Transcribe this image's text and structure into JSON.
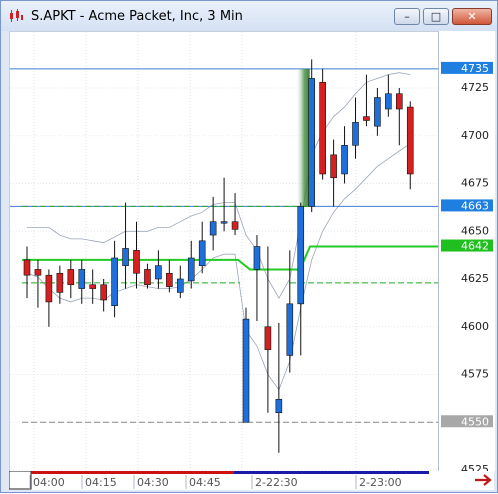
{
  "window": {
    "title": "S.APKT - Acme Packet, Inc, 3 Min",
    "minimize_glyph": "–",
    "maximize_glyph": "□",
    "close_glyph": "✕"
  },
  "chart_data": {
    "type": "candlestick",
    "symbol": "S.APKT",
    "ylim": [
      4520,
      4745
    ],
    "y_ticks": [
      4525,
      4550,
      4575,
      4600,
      4625,
      4650,
      4675,
      4700,
      4725
    ],
    "x_ticks": [
      "04:00",
      "04:15",
      "04:30",
      "04:45",
      "2-22:30",
      "2-23:00"
    ],
    "price_tags": [
      {
        "value": 4735,
        "label": "4735",
        "color": "#1e7fe0",
        "text_color": "#ffffff"
      },
      {
        "value": 4663,
        "label": "4663",
        "color": "#1e7fe0",
        "text_color": "#ffffff"
      },
      {
        "value": 4642,
        "label": "4642",
        "color": "#1fbf1f",
        "text_color": "#ffffff"
      },
      {
        "value": 4550,
        "label": "4550",
        "color": "#a8a8a8",
        "text_color": "#ffffff"
      }
    ],
    "levels": [
      {
        "value": 4735,
        "style": "solid",
        "color": "#3b7ddb"
      },
      {
        "value": 4663,
        "style": "solid",
        "color": "#3b7ddb"
      },
      {
        "value": 4663,
        "style": "dashed",
        "color": "#22aa22"
      },
      {
        "value": 4623,
        "style": "dashed",
        "color": "#22aa22"
      },
      {
        "value": 4550,
        "style": "dashed",
        "color": "#888888"
      }
    ],
    "moving_average": {
      "value_left": 4635,
      "value_right": 4642,
      "break_value": 4630,
      "color": "#22cc22"
    },
    "candles": [
      {
        "o": 4635,
        "c": 4627,
        "h": 4642,
        "l": 4615
      },
      {
        "o": 4630,
        "c": 4627,
        "h": 4635,
        "l": 4610
      },
      {
        "o": 4627,
        "c": 4613,
        "h": 4630,
        "l": 4600
      },
      {
        "o": 4628,
        "c": 4618,
        "h": 4632,
        "l": 4612
      },
      {
        "o": 4630,
        "c": 4622,
        "h": 4635,
        "l": 4615
      },
      {
        "o": 4620,
        "c": 4630,
        "h": 4635,
        "l": 4612
      },
      {
        "o": 4622,
        "c": 4620,
        "h": 4630,
        "l": 4612
      },
      {
        "o": 4622,
        "c": 4614,
        "h": 4625,
        "l": 4608
      },
      {
        "o": 4611,
        "c": 4636,
        "h": 4645,
        "l": 4605
      },
      {
        "o": 4632,
        "c": 4641,
        "h": 4665,
        "l": 4620
      },
      {
        "o": 4640,
        "c": 4628,
        "h": 4655,
        "l": 4620
      },
      {
        "o": 4630,
        "c": 4622,
        "h": 4633,
        "l": 4620
      },
      {
        "o": 4625,
        "c": 4632,
        "h": 4640,
        "l": 4620
      },
      {
        "o": 4628,
        "c": 4621,
        "h": 4635,
        "l": 4618
      },
      {
        "o": 4618,
        "c": 4625,
        "h": 4632,
        "l": 4615
      },
      {
        "o": 4624,
        "c": 4636,
        "h": 4645,
        "l": 4620
      },
      {
        "o": 4632,
        "c": 4645,
        "h": 4655,
        "l": 4628
      },
      {
        "o": 4648,
        "c": 4655,
        "h": 4668,
        "l": 4640
      },
      {
        "o": 4655,
        "c": 4655,
        "h": 4678,
        "l": 4650
      },
      {
        "o": 4655,
        "c": 4651,
        "h": 4670,
        "l": 4648
      },
      {
        "o": 4550,
        "c": 4604,
        "h": 4610,
        "l": 4550
      },
      {
        "o": 4630,
        "c": 4642,
        "h": 4648,
        "l": 4603
      },
      {
        "o": 4600,
        "c": 4588,
        "h": 4642,
        "l": 4555
      },
      {
        "o": 4555,
        "c": 4562,
        "h": 4602,
        "l": 4534
      },
      {
        "o": 4585,
        "c": 4612,
        "h": 4640,
        "l": 4576
      },
      {
        "o": 4612,
        "c": 4663,
        "h": 4665,
        "l": 4585
      },
      {
        "o": 4663,
        "c": 4730,
        "h": 4740,
        "l": 4660
      },
      {
        "o": 4728,
        "c": 4680,
        "h": 4735,
        "l": 4677
      },
      {
        "o": 4690,
        "c": 4678,
        "h": 4698,
        "l": 4663
      },
      {
        "o": 4680,
        "c": 4695,
        "h": 4705,
        "l": 4675
      },
      {
        "o": 4695,
        "c": 4707,
        "h": 4720,
        "l": 4688
      },
      {
        "o": 4710,
        "c": 4708,
        "h": 4732,
        "l": 4705
      },
      {
        "o": 4705,
        "c": 4720,
        "h": 4725,
        "l": 4700
      },
      {
        "o": 4714,
        "c": 4722,
        "h": 4732,
        "l": 4710
      },
      {
        "o": 4722,
        "c": 4714,
        "h": 4725,
        "l": 4695
      },
      {
        "o": 4715,
        "c": 4680,
        "h": 4718,
        "l": 4672
      }
    ],
    "envelope_upper": [
      4652,
      4652,
      4652,
      4648,
      4646,
      4646,
      4645,
      4644,
      4647,
      4650,
      4650,
      4650,
      4652,
      4652,
      4655,
      4658,
      4660,
      4664,
      4665,
      4665,
      4648,
      4640,
      4625,
      4615,
      4625,
      4655,
      4690,
      4702,
      4710,
      4715,
      4722,
      4728,
      4730,
      4732,
      4733,
      4732
    ],
    "envelope_lower": [
      4628,
      4626,
      4620,
      4615,
      4613,
      4615,
      4615,
      4614,
      4618,
      4620,
      4622,
      4621,
      4620,
      4620,
      4621,
      4625,
      4630,
      4636,
      4638,
      4638,
      4598,
      4590,
      4575,
      4567,
      4582,
      4610,
      4635,
      4650,
      4660,
      4667,
      4672,
      4678,
      4684,
      4688,
      4692,
      4696
    ]
  },
  "bottom": {
    "color_left": "#cc1111",
    "color_right": "#1a1aaa",
    "split_value": 0.51
  }
}
